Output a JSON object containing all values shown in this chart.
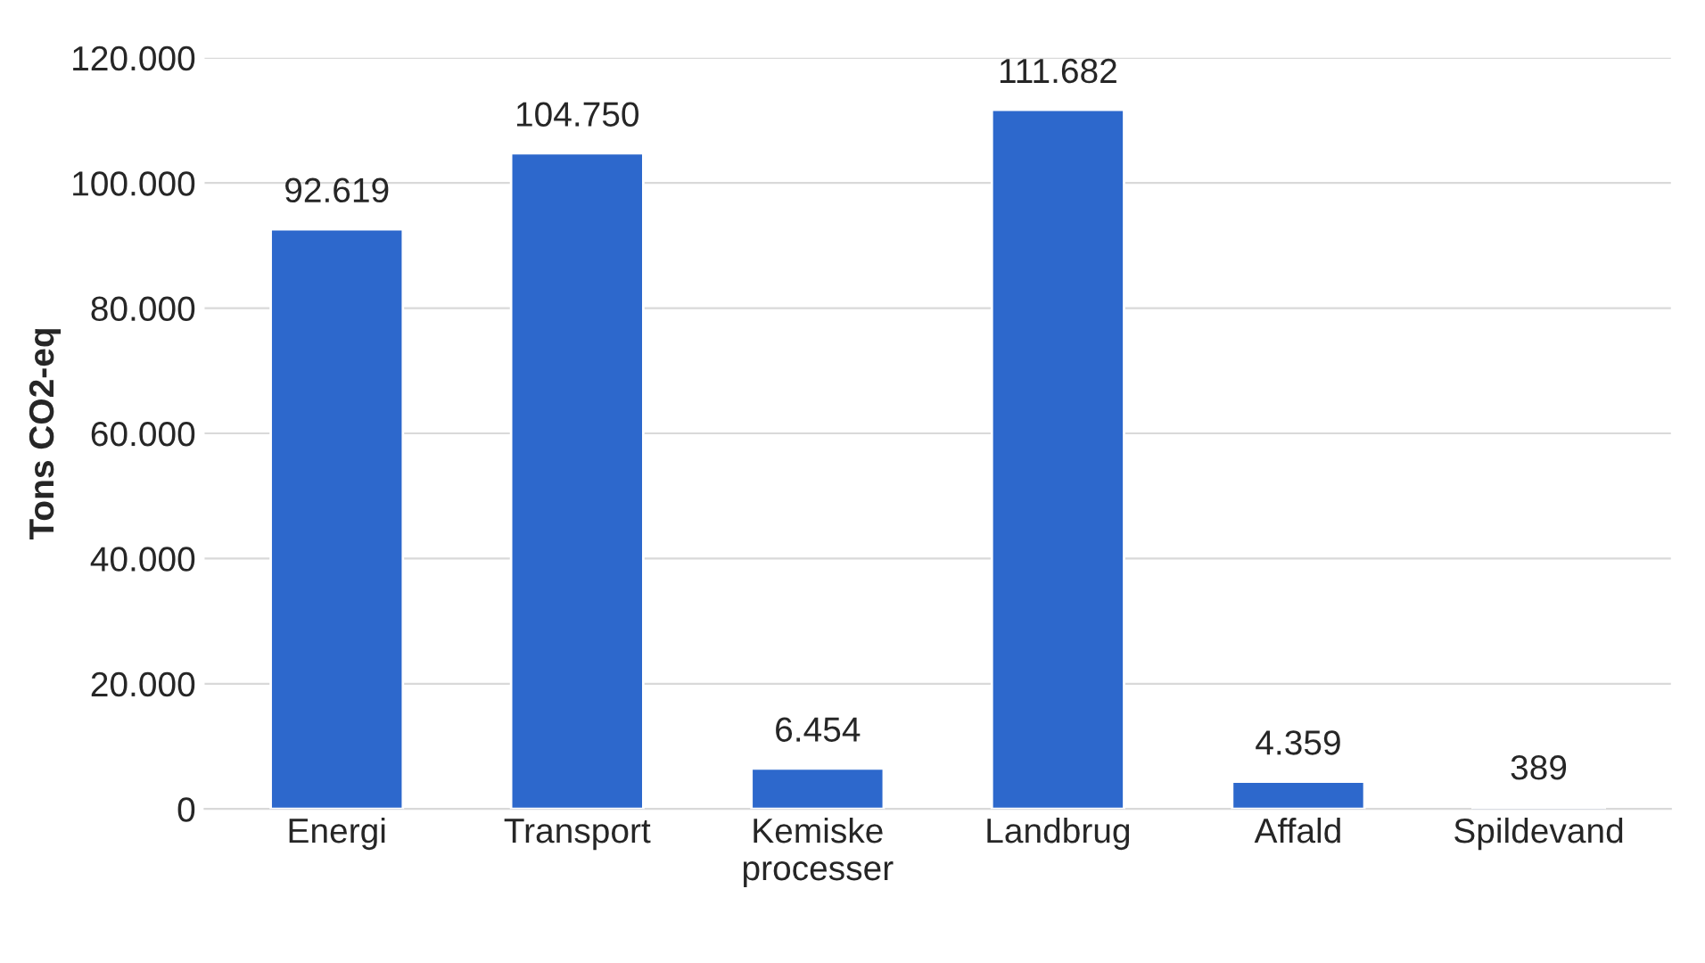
{
  "chart_data": {
    "type": "bar",
    "ylabel": "Tons CO2-eq",
    "categories": [
      "Energi",
      "Transport",
      "Kemiske processer",
      "Landbrug",
      "Affald",
      "Spildevand"
    ],
    "values": [
      92619,
      104750,
      6454,
      111682,
      4359,
      389
    ],
    "value_labels": [
      "92.619",
      "104.750",
      "6.454",
      "111.682",
      "4.359",
      "389"
    ],
    "color": "#2d68cc",
    "ylim": [
      0,
      120000
    ],
    "yticks": [
      {
        "value": 0,
        "label": "0"
      },
      {
        "value": 20000,
        "label": "20.000"
      },
      {
        "value": 40000,
        "label": "40.000"
      },
      {
        "value": 60000,
        "label": "60.000"
      },
      {
        "value": 80000,
        "label": "80.000"
      },
      {
        "value": 100000,
        "label": "100.000"
      },
      {
        "value": 120000,
        "label": "120.000"
      }
    ],
    "grid": "y"
  }
}
